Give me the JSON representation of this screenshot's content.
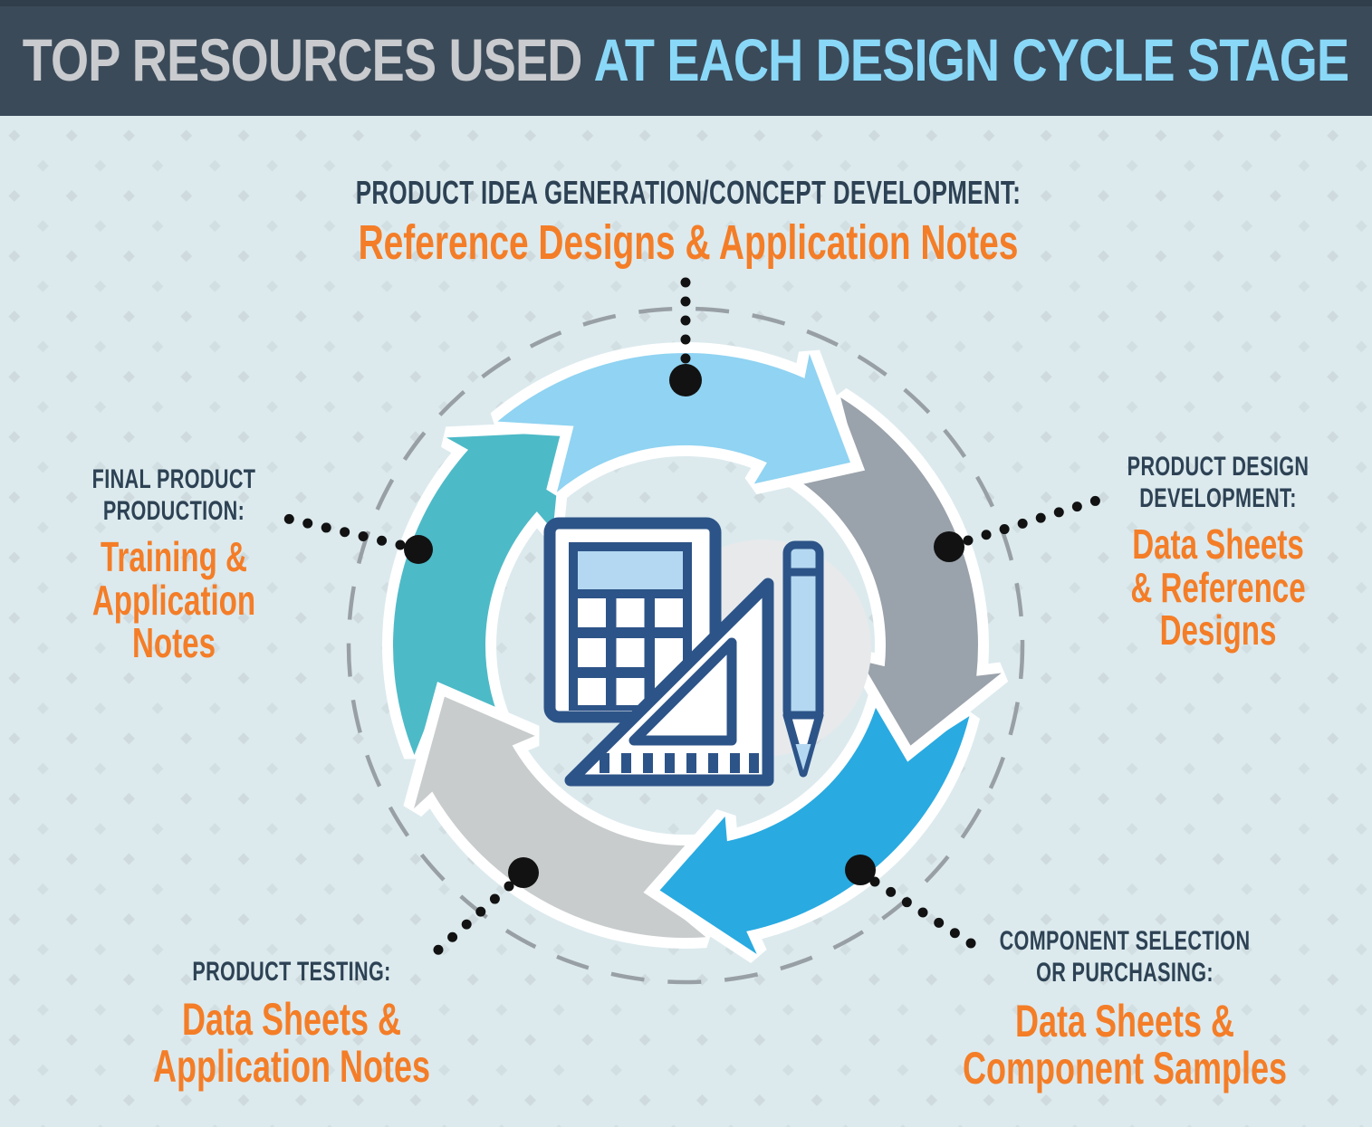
{
  "title": {
    "left": "TOP RESOURCES USED",
    "right": "AT EACH DESIGN CYCLE STAGE"
  },
  "colors": {
    "header_bg": "#3b4a59",
    "header_text_gray": "#c9cbce",
    "header_text_blue": "#8ad8f8",
    "page_bg": "#dceaee",
    "pattern_diamond": "#cbd7db",
    "stage_text": "#2d4254",
    "resource_text": "#f47d27",
    "dashed_circle": "#98a0a6",
    "dot_black": "#121212",
    "icon_stroke": "#2d5488",
    "icon_fill_light": "#b5d8f2",
    "icon_circle_gray": "#e7e9eb"
  },
  "cycle": {
    "stages": [
      {
        "id": "idea-generation",
        "position": "top",
        "arrow_color": "#90d3f2",
        "stage": "PRODUCT IDEA GENERATION/CONCEPT DEVELOPMENT:",
        "resource": "Reference Designs & Application Notes"
      },
      {
        "id": "design-development",
        "position": "right",
        "arrow_color": "#9aa2ab",
        "stage": "PRODUCT DESIGN\nDEVELOPMENT:",
        "resource": "Data Sheets\n& Reference\nDesigns"
      },
      {
        "id": "component-selection",
        "position": "bottom-right",
        "arrow_color": "#29aae1",
        "stage": "COMPONENT SELECTION\nOR PURCHASING:",
        "resource": "Data Sheets &\nComponent Samples"
      },
      {
        "id": "product-testing",
        "position": "bottom-left",
        "arrow_color": "#c8cccd",
        "stage": "PRODUCT TESTING:",
        "resource": "Data Sheets &\nApplication Notes"
      },
      {
        "id": "final-production",
        "position": "left",
        "arrow_color": "#4dbac7",
        "stage": "FINAL PRODUCT\nPRODUCTION:",
        "resource": "Training &\nApplication\nNotes"
      }
    ]
  }
}
